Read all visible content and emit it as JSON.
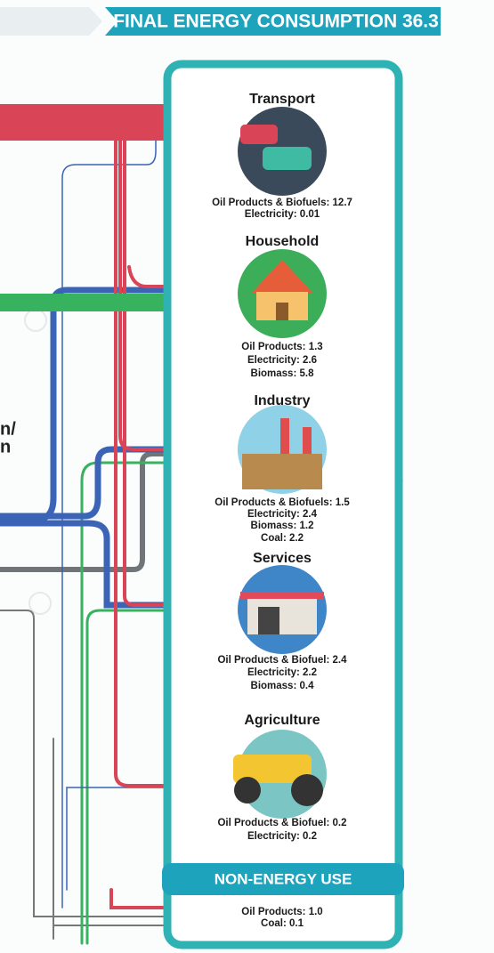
{
  "header": {
    "title": "FINAL ENERGY CONSUMPTION 36.3"
  },
  "left_fragments": [
    "n/",
    "n"
  ],
  "sectors": [
    {
      "name": "Transport",
      "lines": [
        "Oil Products & Biofuels: 12.7",
        "Electricity: 0.01"
      ]
    },
    {
      "name": "Household",
      "lines": [
        "Oil Products: 1.3",
        "Electricity: 2.6",
        "Biomass: 5.8"
      ]
    },
    {
      "name": "Industry",
      "lines": [
        "Oil Products & Biofuels: 1.5",
        "Electricity: 2.4",
        "Biomass: 1.2",
        "Coal: 2.2"
      ]
    },
    {
      "name": "Services",
      "lines": [
        "Oil Products & Biofuel: 2.4",
        "Electricity: 2.2",
        "Biomass: 0.4"
      ]
    },
    {
      "name": "Agriculture",
      "lines": [
        "Oil Products & Biofuel: 0.2",
        "Electricity: 0.2"
      ]
    },
    {
      "name": "NON-ENERGY USE",
      "lines": [
        "Oil Products: 1.0",
        "Coal: 0.1"
      ]
    }
  ]
}
